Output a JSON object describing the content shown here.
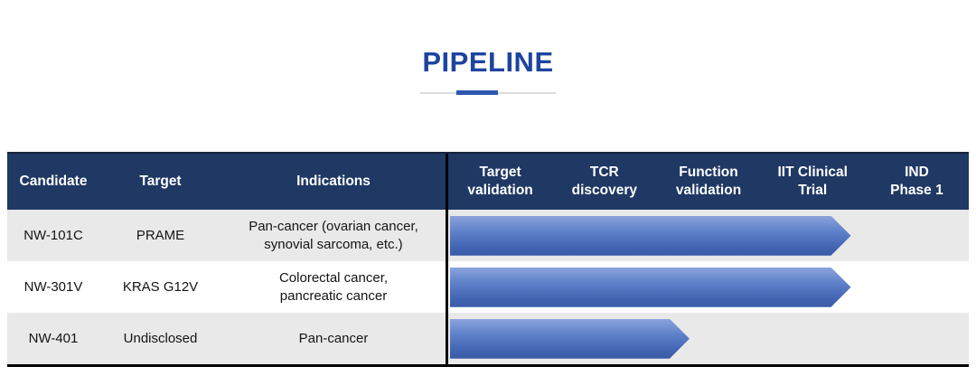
{
  "colors": {
    "title_accent": "#1E44A0",
    "divider_accent": "#2E57AC",
    "header_bg": "#1F3864",
    "row_alt_bg": "#E9E9E9",
    "arrow_gradient_top": "#8AA3DC",
    "arrow_gradient_bottom": "#3A5BA7",
    "table_border": "#000000"
  },
  "chart_data": {
    "type": "table",
    "title": "PIPELINE",
    "info_headers": [
      "Candidate",
      "Target",
      "Indications"
    ],
    "phase_headers": [
      "Target\nvalidation",
      "TCR\ndiscovery",
      "Function\nvalidation",
      "IIT Clinical\nTrial",
      "IND\nPhase 1"
    ],
    "rows": [
      {
        "candidate": "NW-101C",
        "target": "PRAME",
        "indications": "Pan-cancer (ovarian cancer,\nsynovial sarcoma, etc.)",
        "stage_reached": "IIT Clinical Trial",
        "progress_pct": 77
      },
      {
        "candidate": "NW-301V",
        "target": "KRAS G12V",
        "indications": "Colorectal cancer,\npancreatic cancer",
        "stage_reached": "IIT Clinical Trial",
        "progress_pct": 77
      },
      {
        "candidate": "NW-401",
        "target": "Undisclosed",
        "indications": "Pan-cancer",
        "stage_reached": "Function validation",
        "progress_pct": 46
      }
    ],
    "legend_position": "none",
    "grid": false
  }
}
